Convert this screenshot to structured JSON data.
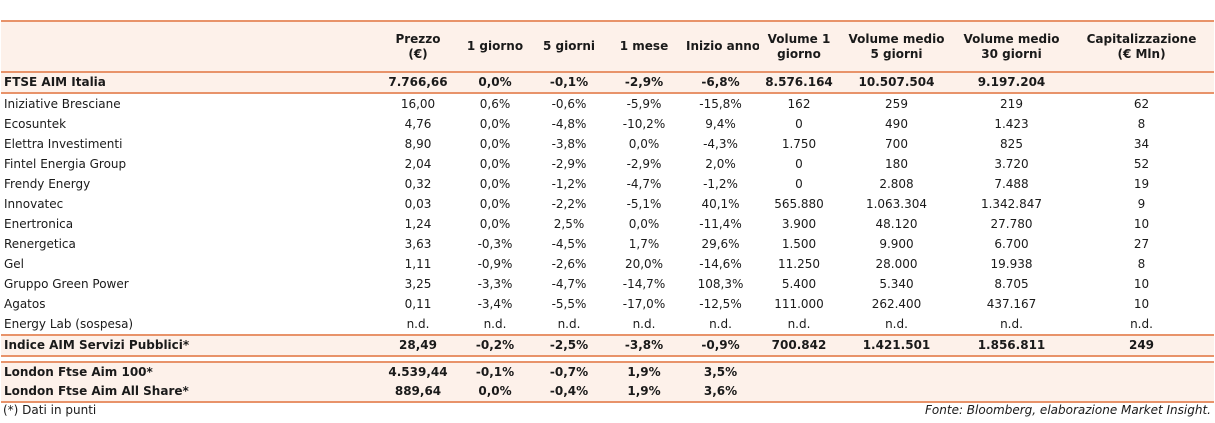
{
  "headers": [
    "",
    "Prezzo\n(€)",
    "1 giorno",
    "5 giorni",
    "1 mese",
    "Inizio anno",
    "Volume 1\ngiorno",
    "Volume medio\n5 giorni",
    "Volume medio\n30 giorni",
    "Capitalizzazione\n(€ Mln)"
  ],
  "ftse_aim": [
    "FTSE AIM Italia",
    "7.766,66",
    "0,0%",
    "-0,1%",
    "-2,9%",
    "-6,8%",
    "8.576.164",
    "10.507.504",
    "9.197.204",
    ""
  ],
  "rows": [
    [
      "Iniziative Bresciane",
      "16,00",
      "0,6%",
      "-0,6%",
      "-5,9%",
      "-15,8%",
      "162",
      "259",
      "219",
      "62"
    ],
    [
      "Ecosuntek",
      "4,76",
      "0,0%",
      "-4,8%",
      "-10,2%",
      "9,4%",
      "0",
      "490",
      "1.423",
      "8"
    ],
    [
      "Elettra Investimenti",
      "8,90",
      "0,0%",
      "-3,8%",
      "0,0%",
      "-4,3%",
      "1.750",
      "700",
      "825",
      "34"
    ],
    [
      "Fintel Energia Group",
      "2,04",
      "0,0%",
      "-2,9%",
      "-2,9%",
      "2,0%",
      "0",
      "180",
      "3.720",
      "52"
    ],
    [
      "Frendy Energy",
      "0,32",
      "0,0%",
      "-1,2%",
      "-4,7%",
      "-1,2%",
      "0",
      "2.808",
      "7.488",
      "19"
    ],
    [
      "Innovatec",
      "0,03",
      "0,0%",
      "-2,2%",
      "-5,1%",
      "40,1%",
      "565.880",
      "1.063.304",
      "1.342.847",
      "9"
    ],
    [
      "Enertronica",
      "1,24",
      "0,0%",
      "2,5%",
      "0,0%",
      "-11,4%",
      "3.900",
      "48.120",
      "27.780",
      "10"
    ],
    [
      "Renergetica",
      "3,63",
      "-0,3%",
      "-4,5%",
      "1,7%",
      "29,6%",
      "1.500",
      "9.900",
      "6.700",
      "27"
    ],
    [
      "Gel",
      "1,11",
      "-0,9%",
      "-2,6%",
      "20,0%",
      "-14,6%",
      "11.250",
      "28.000",
      "19.938",
      "8"
    ],
    [
      "Gruppo Green Power",
      "3,25",
      "-3,3%",
      "-4,7%",
      "-14,7%",
      "108,3%",
      "5.400",
      "5.340",
      "8.705",
      "10"
    ],
    [
      "Agatos",
      "0,11",
      "-3,4%",
      "-5,5%",
      "-17,0%",
      "-12,5%",
      "111.000",
      "262.400",
      "437.167",
      "10"
    ],
    [
      "Energy Lab (sospesa)",
      "n.d.",
      "n.d.",
      "n.d.",
      "n.d.",
      "n.d.",
      "n.d.",
      "n.d.",
      "n.d.",
      "n.d."
    ]
  ],
  "indice": [
    "Indice AIM Servizi Pubblici*",
    "28,49",
    "-0,2%",
    "-2,5%",
    "-3,8%",
    "-0,9%",
    "700.842",
    "1.421.501",
    "1.856.811",
    "249"
  ],
  "london": [
    [
      "London Ftse Aim 100*",
      "4.539,44",
      "-0,1%",
      "-0,7%",
      "1,9%",
      "3,5%",
      "",
      "",
      "",
      ""
    ],
    [
      "London Ftse Aim All Share*",
      "889,64",
      "0,0%",
      "-0,4%",
      "1,9%",
      "3,6%",
      "",
      "",
      "",
      ""
    ]
  ],
  "footnote": "(*) Dati in punti",
  "source": "Fonte: Bloomberg, elaborazione Market Insight."
}
